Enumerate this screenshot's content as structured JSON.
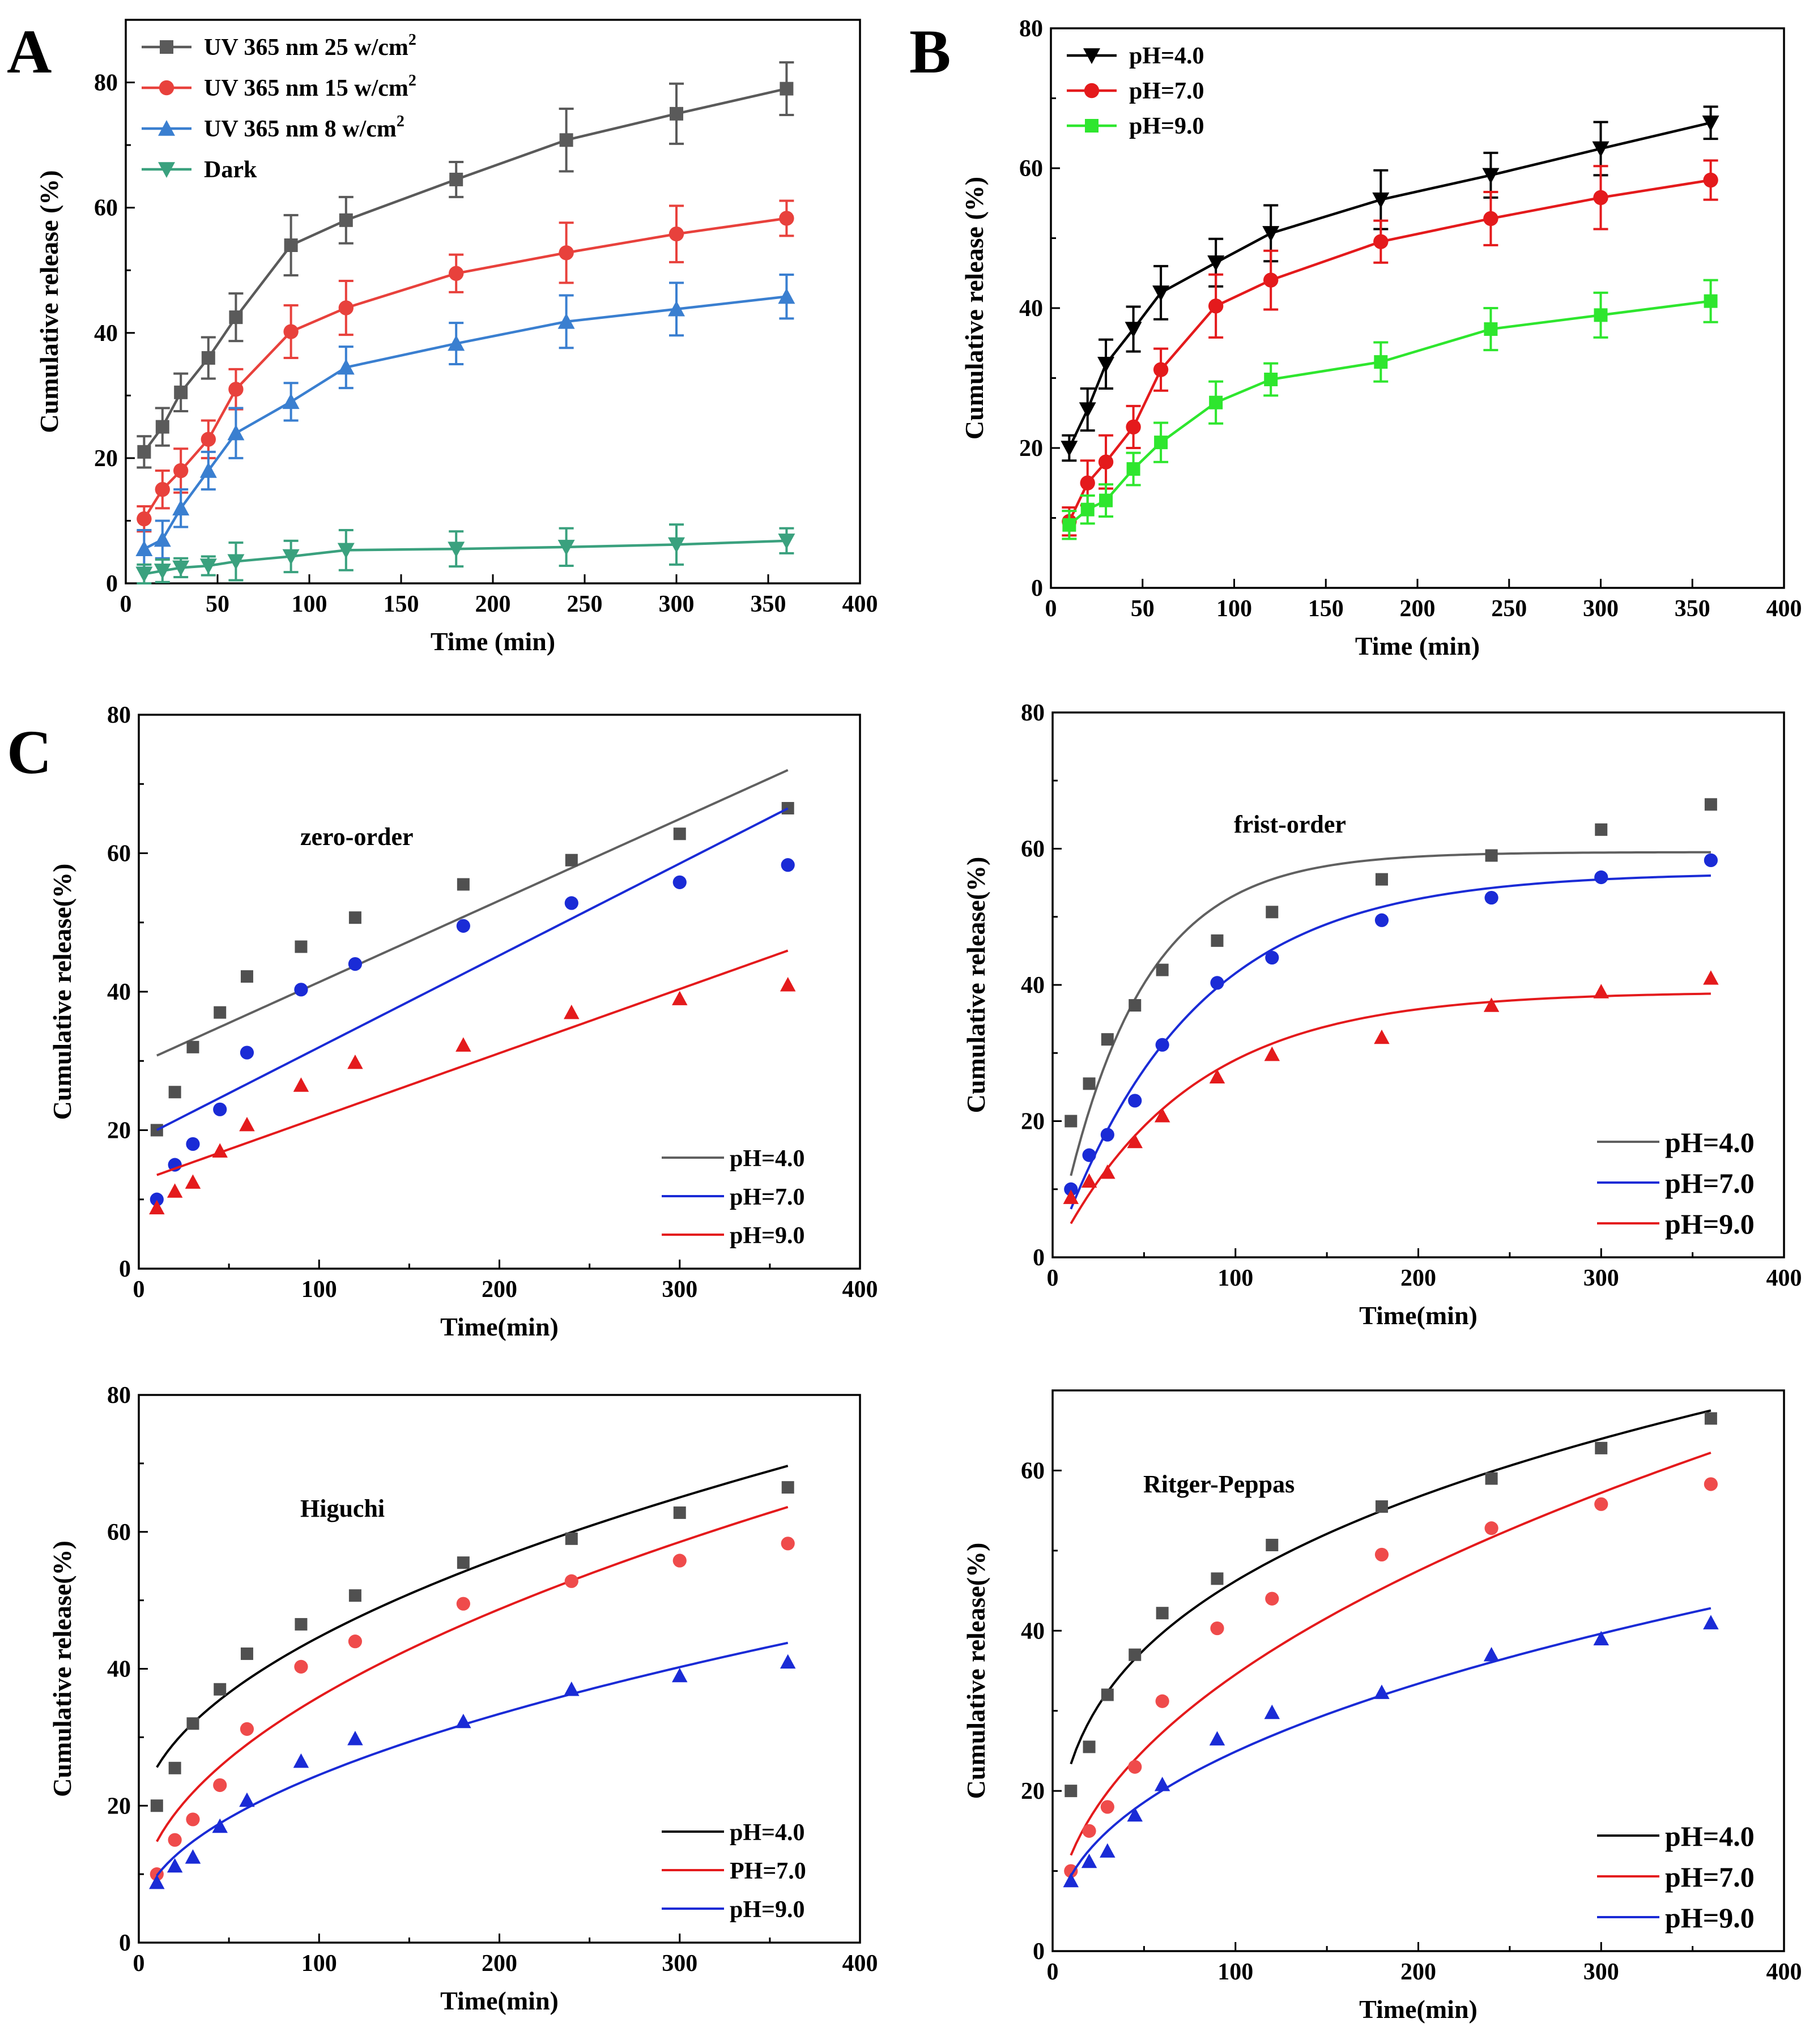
{
  "panel_labels": [
    "A",
    "B",
    "C"
  ],
  "chart_data": [
    {
      "panel": "A",
      "type": "line",
      "xlabel": "Time (min)",
      "ylabel": "Cumulative release (%)",
      "xlim": [
        0,
        400
      ],
      "ylim": [
        0,
        90
      ],
      "xticks": [
        0,
        50,
        100,
        150,
        200,
        250,
        300,
        350,
        400
      ],
      "yticks": [
        0,
        20,
        40,
        60,
        80
      ],
      "x": [
        10,
        20,
        30,
        45,
        60,
        90,
        120,
        180,
        240,
        300,
        360
      ],
      "legend_position": "top-left",
      "series": [
        {
          "name": "UV 365 nm 25 w/cm",
          "superscript": "2",
          "color": "#5a5a5a",
          "marker": "square",
          "values": [
            21,
            25,
            30.5,
            36,
            42.5,
            54,
            58,
            64.5,
            70.8,
            75,
            79
          ],
          "errors": [
            2.5,
            3,
            3,
            3.3,
            3.8,
            4.8,
            3.7,
            2.8,
            5,
            4.8,
            4.2
          ]
        },
        {
          "name": "UV 365 nm 15 w/cm",
          "superscript": "2",
          "color": "#e8413c",
          "marker": "circle",
          "values": [
            10.3,
            15,
            18,
            23,
            31,
            40.2,
            44,
            49.5,
            52.8,
            55.8,
            58.3
          ],
          "errors": [
            2,
            3,
            3.5,
            3,
            3.2,
            4.2,
            4.3,
            3,
            4.8,
            4.5,
            2.8
          ]
        },
        {
          "name": "UV 365 nm 8 w/cm",
          "superscript": "2",
          "color": "#3a7fd0",
          "marker": "triangle-up",
          "values": [
            5.5,
            7,
            12,
            18,
            24,
            29,
            34.5,
            38.3,
            41.8,
            43.8,
            45.8
          ],
          "errors": [
            3,
            3,
            3,
            3,
            4,
            3,
            3.3,
            3.3,
            4.2,
            4.2,
            3.5
          ]
        },
        {
          "name": "Dark",
          "superscript": "",
          "color": "#3aa17e",
          "marker": "triangle-down",
          "values": [
            1.5,
            2,
            2.5,
            2.8,
            3.5,
            4.3,
            5.3,
            5.5,
            5.8,
            6.2,
            6.8
          ],
          "errors": [
            1.5,
            1.8,
            1.5,
            1.5,
            3,
            2.5,
            3.2,
            2.8,
            3,
            3.2,
            2
          ]
        }
      ]
    },
    {
      "panel": "B",
      "type": "line",
      "xlabel": "Time (min)",
      "ylabel": "Cumulative release (%)",
      "xlim": [
        0,
        400
      ],
      "ylim": [
        0,
        80
      ],
      "xticks": [
        0,
        50,
        100,
        150,
        200,
        250,
        300,
        350,
        400
      ],
      "yticks": [
        0,
        20,
        40,
        60,
        80
      ],
      "x": [
        10,
        20,
        30,
        45,
        60,
        90,
        120,
        180,
        240,
        300,
        360
      ],
      "legend_position": "top-left",
      "series": [
        {
          "name": "pH=4.0",
          "color": "#000000",
          "marker": "triangle-down",
          "values": [
            20,
            25.5,
            32,
            37,
            42.2,
            46.5,
            50.7,
            55.5,
            59,
            62.8,
            66.5
          ],
          "errors": [
            1.8,
            3,
            3.5,
            3.2,
            3.8,
            3.4,
            4,
            4.2,
            3.2,
            3.8,
            2.3
          ]
        },
        {
          "name": "pH=7.0",
          "color": "#e41a1c",
          "marker": "circle",
          "values": [
            9.5,
            15,
            18,
            23,
            31.2,
            40.3,
            44,
            49.5,
            52.8,
            55.8,
            58.3
          ],
          "errors": [
            2,
            3.2,
            3.8,
            3,
            3,
            4.5,
            4.2,
            3,
            3.8,
            4.5,
            2.8
          ]
        },
        {
          "name": "pH=9.0",
          "color": "#2ee62e",
          "marker": "square",
          "values": [
            9,
            11.2,
            12.5,
            17,
            20.8,
            26.5,
            29.8,
            32.3,
            37,
            39,
            41
          ],
          "errors": [
            2,
            2,
            2.3,
            2.3,
            2.8,
            3,
            2.3,
            2.8,
            3,
            3.2,
            3
          ]
        }
      ]
    },
    {
      "panel": "C",
      "model": "zero-order",
      "type": "scatter",
      "xlabel": "Time(min)",
      "ylabel": "Cumulative release(%)",
      "xlim": [
        0,
        400
      ],
      "ylim": [
        0,
        80
      ],
      "xticks": [
        0,
        100,
        200,
        300,
        400
      ],
      "yticks": [
        0,
        20,
        40,
        60,
        80
      ],
      "x": [
        10,
        20,
        30,
        45,
        60,
        90,
        120,
        180,
        240,
        300,
        360
      ],
      "legend_position": "bottom-right",
      "legend_size": "small",
      "series": [
        {
          "name": "pH=4.0",
          "color": "#000000",
          "line_color": "#606060",
          "marker": "square",
          "marker_color": "#505050",
          "values": [
            20,
            25.5,
            32,
            37,
            42.2,
            46.5,
            50.7,
            55.5,
            59,
            62.8,
            66.5
          ],
          "fit": {
            "kind": "linear",
            "a": 29.6,
            "b": 0.1178
          }
        },
        {
          "name": "pH=7.0",
          "color": "#0000cc",
          "line_color": "#1a2bd6",
          "marker": "circle",
          "marker_color": "#1a2bd6",
          "values": [
            10,
            15,
            18,
            23,
            31.2,
            40.3,
            44,
            49.5,
            52.8,
            55.8,
            58.3
          ],
          "fit": {
            "kind": "linear",
            "a": 18.7,
            "b": 0.1327
          }
        },
        {
          "name": "pH=9.0",
          "color": "#e41a1c",
          "line_color": "#e41a1c",
          "marker": "triangle-up",
          "marker_color": "#e41a1c",
          "values": [
            8.8,
            11.2,
            12.5,
            17,
            20.8,
            26.5,
            29.8,
            32.3,
            37,
            39,
            41
          ],
          "fit": {
            "kind": "linear",
            "a": 12.6,
            "b": 0.0926
          }
        }
      ],
      "annotation": "zero-order"
    },
    {
      "panel": "C",
      "model": "frist-order",
      "type": "scatter",
      "xlabel": "Time(min)",
      "ylabel": "Cumulative release(%)",
      "xlim": [
        0,
        400
      ],
      "ylim": [
        0,
        80
      ],
      "xticks": [
        0,
        100,
        200,
        300,
        400
      ],
      "yticks": [
        0,
        20,
        40,
        60,
        80
      ],
      "x": [
        10,
        20,
        30,
        45,
        60,
        90,
        120,
        180,
        240,
        300,
        360
      ],
      "legend_position": "bottom-right",
      "legend_size": "large",
      "series": [
        {
          "name": "pH=4.0",
          "color": "#000000",
          "line_color": "#606060",
          "marker": "square",
          "marker_color": "#505050",
          "values": [
            20,
            25.5,
            32,
            37,
            42.2,
            46.5,
            50.7,
            55.5,
            59,
            62.8,
            66.5
          ],
          "fit": {
            "kind": "first-order",
            "A": 59.5,
            "k": 0.0225
          }
        },
        {
          "name": "pH=7.0",
          "color": "#0000cc",
          "line_color": "#1a2bd6",
          "marker": "circle",
          "marker_color": "#1a2bd6",
          "values": [
            10,
            15,
            18,
            23,
            31.2,
            40.3,
            44,
            49.5,
            52.8,
            55.8,
            58.3
          ],
          "fit": {
            "kind": "first-order",
            "A": 56.5,
            "k": 0.0134
          }
        },
        {
          "name": "pH=9.0",
          "color": "#e41a1c",
          "line_color": "#e41a1c",
          "marker": "triangle-up",
          "marker_color": "#e41a1c",
          "values": [
            8.8,
            11.2,
            12.5,
            17,
            20.8,
            26.5,
            29.8,
            32.3,
            37,
            39,
            41
          ],
          "fit": {
            "kind": "first-order",
            "A": 39,
            "k": 0.0136
          }
        }
      ],
      "annotation": "frist-order"
    },
    {
      "panel": "C",
      "model": "Higuchi",
      "type": "scatter",
      "xlabel": "Time(min)",
      "ylabel": "Cumulative release(%)",
      "xlim": [
        0,
        400
      ],
      "ylim": [
        0,
        80
      ],
      "xticks": [
        0,
        100,
        200,
        300,
        400
      ],
      "yticks": [
        0,
        20,
        40,
        60,
        80
      ],
      "x": [
        10,
        20,
        30,
        45,
        60,
        90,
        120,
        180,
        240,
        300,
        360
      ],
      "legend_position": "bottom-right",
      "legend_size": "small",
      "series": [
        {
          "name": "pH=4.0",
          "color": "#000000",
          "line_color": "#000000",
          "marker": "square",
          "marker_color": "#505050",
          "values": [
            20,
            25.5,
            32,
            37,
            42.2,
            46.5,
            50.7,
            55.5,
            59,
            62.8,
            66.5
          ],
          "fit": {
            "kind": "sqrt",
            "a": 16.8,
            "b": 2.785
          }
        },
        {
          "name": "PH=7.0",
          "color": "#e41a1c",
          "line_color": "#e41a1c",
          "marker": "circle",
          "marker_color": "#ef4b4b",
          "values": [
            10,
            15,
            18,
            23,
            31.2,
            40.3,
            44,
            49.5,
            52.8,
            55.8,
            58.3
          ],
          "fit": {
            "kind": "sqrt",
            "a": 5.0,
            "b": 3.09
          }
        },
        {
          "name": "pH=9.0",
          "color": "#0000cc",
          "line_color": "#1a2bd6",
          "marker": "triangle-up",
          "marker_color": "#1a2bd6",
          "values": [
            8.8,
            11.2,
            12.5,
            17,
            20.8,
            26.5,
            29.8,
            32.3,
            37,
            39,
            41
          ],
          "fit": {
            "kind": "sqrt",
            "a": 3.0,
            "b": 2.15
          }
        }
      ],
      "annotation": "Higuchi"
    },
    {
      "panel": "C",
      "model": "Ritger-Peppas",
      "type": "scatter",
      "xlabel": "Time(min)",
      "ylabel": "Cumulative release(%)",
      "xlim": [
        0,
        400
      ],
      "ylim": [
        0,
        70
      ],
      "xticks": [
        0,
        100,
        200,
        300,
        400
      ],
      "yticks": [
        0,
        20,
        40,
        60
      ],
      "x": [
        10,
        20,
        30,
        45,
        60,
        90,
        120,
        180,
        240,
        300,
        360
      ],
      "legend_position": "bottom-right",
      "legend_size": "large",
      "series": [
        {
          "name": "pH=4.0",
          "color": "#000000",
          "line_color": "#000000",
          "marker": "square",
          "marker_color": "#505050",
          "values": [
            20,
            25.5,
            32,
            37,
            42.2,
            46.5,
            50.7,
            55.5,
            59,
            62.8,
            66.5
          ],
          "fit": {
            "kind": "power",
            "K": 11.82,
            "n": 0.296
          }
        },
        {
          "name": "pH=7.0",
          "color": "#e41a1c",
          "line_color": "#e41a1c",
          "marker": "circle",
          "marker_color": "#ef4b4b",
          "values": [
            10,
            15,
            18,
            23,
            31.2,
            40.3,
            44,
            49.5,
            52.8,
            55.8,
            58.3
          ],
          "fit": {
            "kind": "power",
            "K": 4.15,
            "n": 0.46
          }
        },
        {
          "name": "pH=9.0",
          "color": "#0000cc",
          "line_color": "#1a2bd6",
          "marker": "triangle-up",
          "marker_color": "#1a2bd6",
          "values": [
            8.8,
            11.2,
            12.5,
            17,
            20.8,
            26.5,
            29.8,
            32.3,
            37,
            39,
            41
          ],
          "fit": {
            "kind": "power",
            "K": 3.55,
            "n": 0.423
          }
        }
      ],
      "annotation": "Ritger-Peppas"
    }
  ]
}
